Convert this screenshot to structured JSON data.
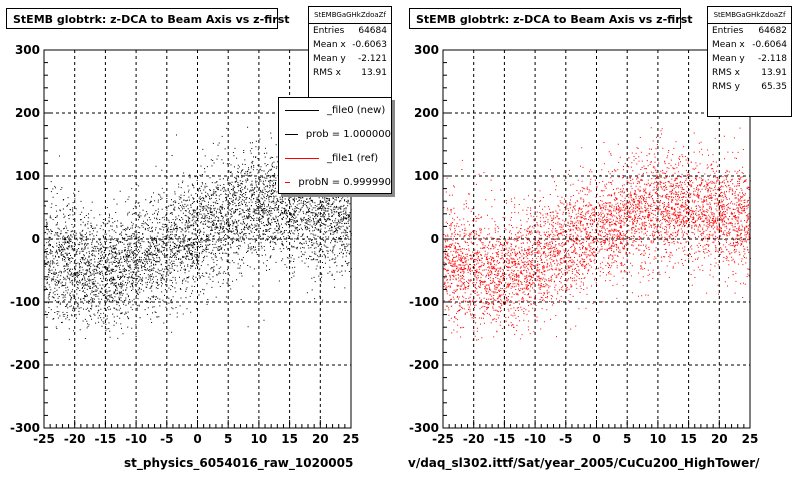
{
  "chart_data": [
    {
      "type": "scatter",
      "title": "StEMB globtrk: z-DCA to Beam Axis vs z-first",
      "xlabel": "st_physics_6054016_raw_1020005",
      "ylabel": "",
      "xlim": [
        -25,
        25
      ],
      "ylim": [
        -300,
        300
      ],
      "x_ticks": [
        "-25",
        "-20",
        "-15",
        "-10",
        "-5",
        "0",
        "5",
        "10",
        "15",
        "20",
        "25"
      ],
      "y_ticks": [
        "300",
        "200",
        "100",
        "0",
        "-100",
        "-200",
        "-300"
      ],
      "grid": true,
      "marker_color": "#000000",
      "stats": {
        "name": "StEMBGaGHkZdoaZf",
        "rows": [
          {
            "label": "Entries",
            "value": "64684"
          },
          {
            "label": "Mean x",
            "value": "-0.6063"
          },
          {
            "label": "Mean y",
            "value": "-2.121"
          },
          {
            "label": "RMS x",
            "value": "13.91"
          }
        ]
      },
      "legend": {
        "placement": "top-right",
        "entries": [
          {
            "label": "_file0 (new)",
            "color": "#000000"
          },
          {
            "label": "prob = 1.000000",
            "color": "#000000"
          },
          {
            "label": "_file1 (ref)",
            "color": "#ff0000"
          },
          {
            "label": "probN = 0.999990",
            "color": "#ff0000"
          }
        ]
      },
      "density_profile": {
        "x": [
          -24,
          -20,
          -16,
          -12,
          -8,
          -4,
          0,
          4,
          8,
          12,
          16,
          20,
          24
        ],
        "y_center": [
          -35,
          -45,
          -55,
          -45,
          -25,
          -5,
          10,
          30,
          50,
          55,
          45,
          40,
          30
        ],
        "y_spread": [
          85,
          80,
          75,
          75,
          75,
          75,
          75,
          75,
          75,
          75,
          70,
          70,
          70
        ]
      }
    },
    {
      "type": "scatter",
      "title": "StEMB globtrk: z-DCA to Beam Axis vs z-first",
      "xlabel": "v/daq_sl302.ittf/Sat/year_2005/CuCu200_HighTower/",
      "ylabel": "",
      "xlim": [
        -25,
        25
      ],
      "ylim": [
        -300,
        300
      ],
      "x_ticks": [
        "-25",
        "-20",
        "-15",
        "-10",
        "-5",
        "0",
        "5",
        "10",
        "15",
        "20",
        "25"
      ],
      "y_ticks": [
        "300",
        "200",
        "100",
        "0",
        "-100",
        "-200",
        "-300"
      ],
      "grid": true,
      "marker_color": "#ff0000",
      "stats": {
        "name": "StEMBGaGHkZdoaZf",
        "rows": [
          {
            "label": "Entries",
            "value": "64682"
          },
          {
            "label": "Mean x",
            "value": "-0.6064"
          },
          {
            "label": "Mean y",
            "value": "-2.118"
          },
          {
            "label": "RMS x",
            "value": "13.91"
          },
          {
            "label": "RMS y",
            "value": "65.35"
          }
        ]
      },
      "density_profile": {
        "x": [
          -24,
          -20,
          -16,
          -12,
          -8,
          -4,
          0,
          4,
          8,
          12,
          16,
          20,
          24
        ],
        "y_center": [
          -35,
          -45,
          -55,
          -45,
          -25,
          -5,
          10,
          30,
          50,
          55,
          45,
          40,
          30
        ],
        "y_spread": [
          85,
          80,
          75,
          75,
          75,
          75,
          75,
          75,
          75,
          75,
          70,
          70,
          70
        ]
      }
    }
  ]
}
